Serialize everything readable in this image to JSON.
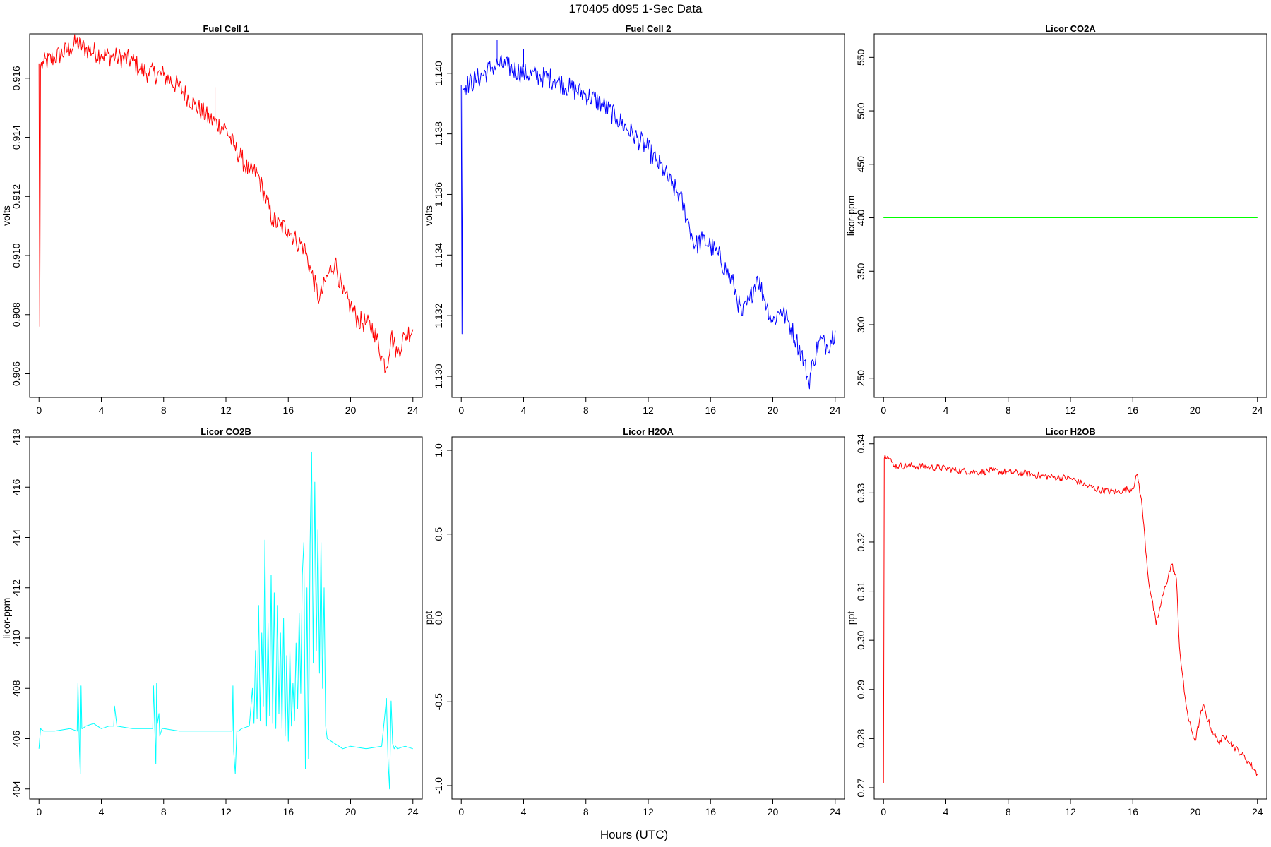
{
  "figure": {
    "title": "170405   d095   1-Sec Data",
    "xlabel": "Hours (UTC)"
  },
  "chart_data": [
    {
      "type": "line",
      "title": "Fuel Cell 1",
      "ylabel": "volts",
      "color": "#ff0000",
      "xlim": [
        -0.6,
        24.6
      ],
      "ylim": [
        0.9052,
        0.9175
      ],
      "xticks": [
        0,
        4,
        8,
        12,
        16,
        20,
        24
      ],
      "yticks": [
        0.906,
        0.908,
        0.91,
        0.912,
        0.914,
        0.916
      ],
      "ytick_labels": [
        "0.906",
        "0.908",
        "0.910",
        "0.912",
        "0.914",
        "0.916"
      ],
      "band": 0.00035,
      "series": [
        {
          "x": [
            0,
            0.05,
            0.1,
            0.3,
            1,
            2,
            2.4,
            3,
            4,
            5,
            6,
            6.5,
            7,
            8,
            9,
            10,
            11,
            12,
            12.5,
            13,
            13.5,
            14,
            14.5,
            15,
            15.5,
            16,
            16.5,
            17,
            17.5,
            18,
            18.5,
            19,
            19.5,
            20,
            20.5,
            21,
            21.5,
            22,
            22.3,
            22.6,
            23,
            23.5,
            24
          ],
          "y": [
            0.9165,
            0.9076,
            0.9164,
            0.9165,
            0.9167,
            0.917,
            0.9172,
            0.917,
            0.9168,
            0.9167,
            0.9166,
            0.9163,
            0.9162,
            0.9161,
            0.9157,
            0.9151,
            0.9146,
            0.9143,
            0.9137,
            0.9133,
            0.9128,
            0.9128,
            0.912,
            0.9112,
            0.911,
            0.9109,
            0.9105,
            0.9103,
            0.9094,
            0.9085,
            0.9093,
            0.9098,
            0.9087,
            0.9083,
            0.9078,
            0.9077,
            0.9075,
            0.9066,
            0.9062,
            0.9073,
            0.9067,
            0.9073,
            0.9075
          ]
        }
      ],
      "spikes": [
        {
          "x": 11.3,
          "y1": 0.9145,
          "y2": 0.9157
        }
      ]
    },
    {
      "type": "line",
      "title": "Fuel Cell 2",
      "ylabel": "volts",
      "color": "#0000ff",
      "xlim": [
        -0.6,
        24.6
      ],
      "ylim": [
        1.1293,
        1.1413
      ],
      "xticks": [
        0,
        4,
        8,
        12,
        16,
        20,
        24
      ],
      "yticks": [
        1.13,
        1.132,
        1.134,
        1.136,
        1.138,
        1.14
      ],
      "ytick_labels": [
        "1.130",
        "1.132",
        "1.134",
        "1.136",
        "1.138",
        "1.140"
      ],
      "band": 0.00035,
      "series": [
        {
          "x": [
            0,
            0.05,
            0.1,
            0.3,
            1,
            2,
            2.4,
            3,
            4,
            5,
            6,
            7,
            8,
            9,
            10,
            11,
            12,
            12.5,
            13,
            13.5,
            14,
            14.5,
            15,
            15.5,
            16,
            16.5,
            17,
            17.5,
            18,
            18.5,
            19,
            19.5,
            20,
            20.5,
            21,
            21.5,
            22,
            22.3,
            22.6,
            23,
            23.5,
            24
          ],
          "y": [
            1.1396,
            1.1314,
            1.1395,
            1.1396,
            1.1398,
            1.1402,
            1.1403,
            1.1402,
            1.14,
            1.1399,
            1.1398,
            1.1395,
            1.1393,
            1.139,
            1.1385,
            1.138,
            1.1375,
            1.1371,
            1.1368,
            1.1363,
            1.136,
            1.1352,
            1.1343,
            1.1345,
            1.1343,
            1.134,
            1.1335,
            1.133,
            1.132,
            1.1325,
            1.1333,
            1.1325,
            1.1318,
            1.1322,
            1.1318,
            1.1312,
            1.1305,
            1.1298,
            1.1305,
            1.1312,
            1.131,
            1.1315
          ]
        }
      ],
      "spikes": [
        {
          "x": 2.3,
          "y1": 1.1404,
          "y2": 1.1411
        },
        {
          "x": 4.0,
          "y1": 1.1402,
          "y2": 1.1408
        }
      ]
    },
    {
      "type": "line",
      "title": "Licor CO2A",
      "ylabel": "licor-ppm",
      "color": "#00ff00",
      "xlim": [
        -0.6,
        24.6
      ],
      "ylim": [
        232,
        572
      ],
      "xticks": [
        0,
        4,
        8,
        12,
        16,
        20,
        24
      ],
      "yticks": [
        250,
        300,
        350,
        400,
        450,
        500,
        550
      ],
      "ytick_labels": [
        "250",
        "300",
        "350",
        "400",
        "450",
        "500",
        "550"
      ],
      "band": 0,
      "series": [
        {
          "x": [
            0,
            24
          ],
          "y": [
            400,
            400
          ]
        }
      ]
    },
    {
      "type": "line",
      "title": "Licor CO2B",
      "ylabel": "licor-ppm",
      "color": "#00ffff",
      "xlim": [
        -0.6,
        24.6
      ],
      "ylim": [
        403.6,
        418.0
      ],
      "xticks": [
        0,
        4,
        8,
        12,
        16,
        20,
        24
      ],
      "yticks": [
        404,
        406,
        408,
        410,
        412,
        414,
        416,
        418
      ],
      "ytick_labels": [
        "404",
        "406",
        "408",
        "410",
        "412",
        "414",
        "416",
        "418"
      ],
      "band": 0,
      "series": [
        {
          "x": [
            0,
            0.1,
            0.3,
            1,
            2,
            2.45,
            2.5,
            2.6,
            2.65,
            2.7,
            2.75,
            2.8,
            3,
            3.5,
            4,
            4.5,
            4.8,
            4.85,
            5,
            6,
            7,
            7.3,
            7.35,
            7.5,
            7.55,
            7.6,
            7.7,
            7.75,
            7.9,
            8,
            9,
            10,
            11,
            12,
            12.4,
            12.45,
            12.5,
            12.6,
            12.7,
            12.8,
            13,
            13.5,
            13.7,
            13.8,
            13.9,
            14.0,
            14.1,
            14.2,
            14.3,
            14.4,
            14.5,
            14.6,
            14.7,
            14.8,
            14.9,
            15.0,
            15.1,
            15.2,
            15.3,
            15.4,
            15.5,
            15.6,
            15.7,
            15.8,
            15.9,
            16.0,
            16.1,
            16.2,
            16.3,
            16.4,
            16.5,
            16.6,
            16.7,
            16.8,
            16.9,
            17.0,
            17.1,
            17.2,
            17.3,
            17.4,
            17.5,
            17.6,
            17.7,
            17.8,
            17.9,
            18.0,
            18.1,
            18.2,
            18.3,
            18.4,
            18.5,
            19,
            19.5,
            20,
            21,
            22,
            22.3,
            22.4,
            22.5,
            22.6,
            22.7,
            22.8,
            22.9,
            23,
            23.5,
            24
          ],
          "y": [
            405.6,
            406.4,
            406.3,
            406.3,
            406.4,
            406.3,
            408.2,
            405.5,
            404.6,
            408.1,
            406.4,
            406.4,
            406.5,
            406.6,
            406.4,
            406.5,
            406.5,
            407.3,
            406.5,
            406.4,
            406.4,
            406.4,
            408.1,
            405.0,
            408.2,
            406.6,
            407.0,
            406.1,
            406.4,
            406.4,
            406.3,
            406.3,
            406.3,
            406.3,
            406.3,
            408.1,
            405.5,
            404.6,
            406.3,
            406.3,
            406.4,
            406.5,
            408.0,
            406.6,
            409.5,
            406.8,
            411.3,
            406.7,
            410.2,
            407.3,
            413.9,
            406.5,
            410.6,
            406.9,
            412.5,
            406.6,
            411.8,
            406.4,
            411.3,
            407.0,
            410.2,
            406.4,
            410.8,
            406.1,
            409.3,
            405.9,
            409.5,
            406.5,
            408.2,
            406.7,
            409.8,
            407.2,
            411.0,
            407.8,
            412.5,
            413.8,
            404.8,
            412.0,
            405.2,
            413.7,
            417.4,
            409.0,
            416.2,
            409.5,
            414.3,
            408.6,
            413.8,
            408.0,
            412.0,
            406.5,
            406.0,
            405.8,
            405.6,
            405.7,
            405.6,
            405.7,
            407.6,
            405.2,
            404.0,
            407.5,
            405.8,
            405.6,
            405.7,
            405.6,
            405.7,
            405.6
          ]
        }
      ]
    },
    {
      "type": "line",
      "title": "Licor H2OA",
      "ylabel": "ppt",
      "color": "#ff00ff",
      "xlim": [
        -0.6,
        24.6
      ],
      "ylim": [
        -1.08,
        1.08
      ],
      "xticks": [
        0,
        4,
        8,
        12,
        16,
        20,
        24
      ],
      "yticks": [
        -1.0,
        -0.5,
        0.0,
        0.5,
        1.0
      ],
      "ytick_labels": [
        "-1.0",
        "-0.5",
        "0.0",
        "0.5",
        "1.0"
      ],
      "band": 0,
      "series": [
        {
          "x": [
            0,
            24
          ],
          "y": [
            0.0,
            0.0
          ]
        }
      ]
    },
    {
      "type": "line",
      "title": "Licor H2OB",
      "ylabel": "ppt",
      "color": "#ff0000",
      "xlim": [
        -0.6,
        24.6
      ],
      "ylim": [
        0.2677,
        0.3414
      ],
      "xticks": [
        0,
        4,
        8,
        12,
        16,
        20,
        24
      ],
      "yticks": [
        0.27,
        0.28,
        0.29,
        0.3,
        0.31,
        0.32,
        0.33,
        0.34
      ],
      "ytick_labels": [
        "0.27",
        "0.28",
        "0.29",
        "0.30",
        "0.31",
        "0.32",
        "0.33",
        "0.34"
      ],
      "band": 0.0007,
      "series": [
        {
          "x": [
            0,
            0.05,
            0.1,
            0.3,
            0.7,
            1,
            2,
            3,
            4,
            5,
            6,
            7,
            8,
            9,
            10,
            11,
            12,
            13,
            14,
            15,
            16,
            16.3,
            16.6,
            17,
            17.5,
            18,
            18.5,
            18.8,
            19,
            19.3,
            19.6,
            20,
            20.5,
            21,
            21.5,
            22,
            22.5,
            23,
            23.5,
            24
          ],
          "y": [
            0.271,
            0.337,
            0.3378,
            0.3372,
            0.3355,
            0.3355,
            0.3355,
            0.3352,
            0.335,
            0.3345,
            0.3342,
            0.3345,
            0.3342,
            0.334,
            0.3335,
            0.3332,
            0.333,
            0.3315,
            0.3305,
            0.3302,
            0.331,
            0.3338,
            0.3272,
            0.3125,
            0.3032,
            0.31,
            0.3155,
            0.3125,
            0.2985,
            0.2895,
            0.2835,
            0.2795,
            0.2868,
            0.2822,
            0.2793,
            0.2805,
            0.2783,
            0.2768,
            0.275,
            0.2728
          ]
        }
      ]
    }
  ]
}
